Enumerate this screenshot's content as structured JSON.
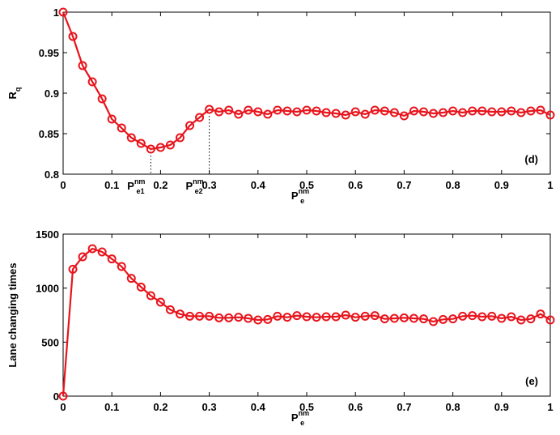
{
  "chart_data": [
    {
      "type": "line",
      "panel_label": "(d)",
      "xlabel": {
        "base": "P",
        "sub": "e",
        "sup": "nm"
      },
      "ylabel": {
        "base": "R",
        "sub": "q"
      },
      "xlim": [
        0,
        1
      ],
      "xticks": [
        0,
        0.1,
        0.2,
        0.3,
        0.4,
        0.5,
        0.6,
        0.7,
        0.8,
        0.9,
        1
      ],
      "ylim": [
        0.8,
        1
      ],
      "yticks": [
        0.8,
        0.85,
        0.9,
        0.95,
        1
      ],
      "annotations": [
        {
          "label": {
            "base": "P",
            "sub": "e1",
            "sup": "nm"
          },
          "x": 0.18,
          "y": 0.831
        },
        {
          "label": {
            "base": "P",
            "sub": "e2",
            "sup": "nm"
          },
          "x": 0.3,
          "y": 0.88
        }
      ],
      "x": [
        0,
        0.02,
        0.04,
        0.06,
        0.08,
        0.1,
        0.12,
        0.14,
        0.16,
        0.18,
        0.2,
        0.22,
        0.24,
        0.26,
        0.28,
        0.3,
        0.32,
        0.34,
        0.36,
        0.38,
        0.4,
        0.42,
        0.44,
        0.46,
        0.48,
        0.5,
        0.52,
        0.54,
        0.56,
        0.58,
        0.6,
        0.62,
        0.64,
        0.66,
        0.68,
        0.7,
        0.72,
        0.74,
        0.76,
        0.78,
        0.8,
        0.82,
        0.84,
        0.86,
        0.88,
        0.9,
        0.92,
        0.94,
        0.96,
        0.98,
        1
      ],
      "series": [
        {
          "color": "#e8141c",
          "values": [
            1.0,
            0.97,
            0.934,
            0.914,
            0.893,
            0.868,
            0.857,
            0.845,
            0.838,
            0.831,
            0.833,
            0.836,
            0.845,
            0.86,
            0.87,
            0.88,
            0.877,
            0.879,
            0.874,
            0.879,
            0.877,
            0.874,
            0.879,
            0.878,
            0.877,
            0.879,
            0.878,
            0.876,
            0.875,
            0.873,
            0.877,
            0.874,
            0.879,
            0.878,
            0.876,
            0.872,
            0.878,
            0.877,
            0.875,
            0.876,
            0.878,
            0.876,
            0.878,
            0.878,
            0.877,
            0.877,
            0.878,
            0.876,
            0.878,
            0.879,
            0.873
          ]
        }
      ]
    },
    {
      "type": "line",
      "panel_label": "(e)",
      "xlabel": {
        "base": "P",
        "sub": "e",
        "sup": "nm"
      },
      "ylabel": {
        "base": "Lane changing times"
      },
      "xlim": [
        0,
        1
      ],
      "xticks": [
        0,
        0.1,
        0.2,
        0.3,
        0.4,
        0.5,
        0.6,
        0.7,
        0.8,
        0.9,
        1
      ],
      "ylim": [
        0,
        1500
      ],
      "yticks": [
        0,
        500,
        1000,
        1500
      ],
      "x": [
        0,
        0.02,
        0.04,
        0.06,
        0.08,
        0.1,
        0.12,
        0.14,
        0.16,
        0.18,
        0.2,
        0.22,
        0.24,
        0.26,
        0.28,
        0.3,
        0.32,
        0.34,
        0.36,
        0.38,
        0.4,
        0.42,
        0.44,
        0.46,
        0.48,
        0.5,
        0.52,
        0.54,
        0.56,
        0.58,
        0.6,
        0.62,
        0.64,
        0.66,
        0.68,
        0.7,
        0.72,
        0.74,
        0.76,
        0.78,
        0.8,
        0.82,
        0.84,
        0.86,
        0.88,
        0.9,
        0.92,
        0.94,
        0.96,
        0.98,
        1
      ],
      "series": [
        {
          "color": "#e8141c",
          "values": [
            0,
            1175,
            1290,
            1365,
            1335,
            1270,
            1200,
            1090,
            1010,
            930,
            870,
            800,
            760,
            740,
            740,
            740,
            725,
            725,
            730,
            720,
            705,
            710,
            740,
            730,
            745,
            735,
            730,
            735,
            735,
            750,
            730,
            740,
            745,
            715,
            720,
            725,
            720,
            715,
            690,
            710,
            715,
            740,
            745,
            735,
            740,
            720,
            735,
            705,
            715,
            760,
            705
          ]
        }
      ]
    }
  ]
}
